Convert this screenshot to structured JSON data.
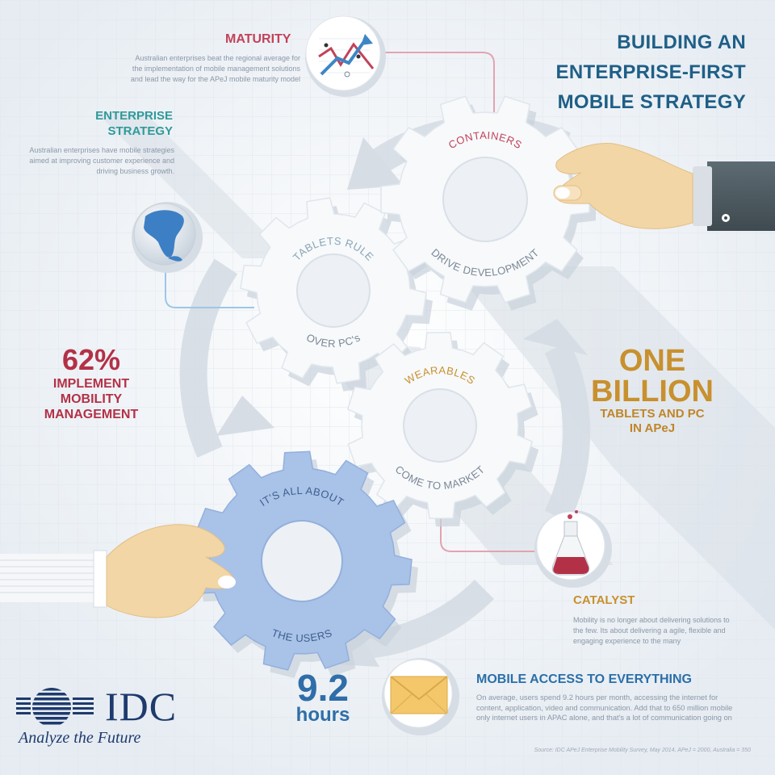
{
  "title": {
    "line1": "BUILDING AN",
    "line2": "ENTERPRISE-FIRST",
    "line3": "MOBILE STRATEGY"
  },
  "maturity": {
    "heading": "MATURITY",
    "text": "Australian enterprises beat the regional average for the implementation of mobile management solutions and lead the way for the APeJ mobile maturity model"
  },
  "enterprise_strategy": {
    "heading_line1": "ENTERPRISE",
    "heading_line2": "STRATEGY",
    "text": "Australian enterprises have mobile strategies aimed at improving customer experience and driving business growth."
  },
  "gears": {
    "containers": {
      "top": "CONTAINERS",
      "bottom": "DRIVE DEVELOPMENT"
    },
    "tablets": {
      "top": "TABLETS RULE",
      "bottom": "OVER PC's"
    },
    "wearables": {
      "top": "WEARABLES",
      "bottom": "COME TO MARKET"
    },
    "users": {
      "top": "IT'S ALL ABOUT",
      "bottom": "THE USERS"
    }
  },
  "stat_62": {
    "value": "62%",
    "line1": "IMPLEMENT",
    "line2": "MOBILITY",
    "line3": "MANAGEMENT"
  },
  "stat_billion": {
    "line1": "ONE",
    "line2": "BILLION",
    "line3": "TABLETS AND PC",
    "line4": "IN APeJ"
  },
  "catalyst": {
    "heading": "CATALYST",
    "text": "Mobility is no longer about delivering solutions to the few. Its about delivering a agile, flexible and engaging experience to the many"
  },
  "hours": {
    "value": "9.2",
    "unit": "hours"
  },
  "mobile_access": {
    "heading": "MOBILE ACCESS TO EVERYTHING",
    "text": "On average, users spend 9.2 hours per month, accessing the internet for content, application, video and communication. Add that to 650 million mobile only internet users in APAC alone, and that's a lot of communication going on"
  },
  "source": "Source: IDC APeJ Enterprise Mobility Survey, May 2014, APeJ = 2000, Australia = 350",
  "logo": {
    "word": "IDC",
    "tagline": "Analyze the Future"
  },
  "colors": {
    "background": "#eef2f6",
    "gear_white": "#f7f9fb",
    "gear_blue": "#a9c2e8",
    "red": "#b33147",
    "gold": "#c8902e",
    "navy": "#1f5f86",
    "teal": "#2f9a9a"
  },
  "icons": [
    "chart-icon",
    "globe-icon",
    "flask-icon",
    "envelope-icon",
    "hand-icon"
  ]
}
